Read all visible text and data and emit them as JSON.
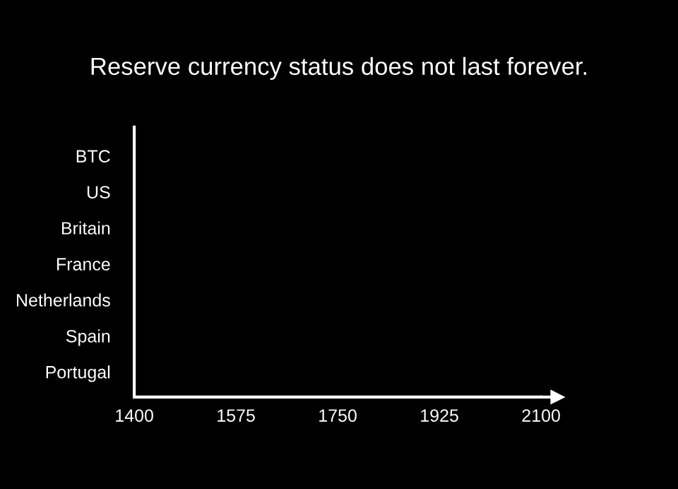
{
  "chart_data": {
    "type": "bar",
    "orientation": "horizontal",
    "title": "Reserve currency status does not last forever.",
    "categories": [
      "BTC",
      "US",
      "Britain",
      "France",
      "Netherlands",
      "Spain",
      "Portugal"
    ],
    "values": [
      null,
      null,
      null,
      null,
      null,
      null,
      null
    ],
    "xlim": [
      1400,
      2100
    ],
    "xticks": [
      1400,
      1575,
      1750,
      1925,
      2100
    ]
  }
}
